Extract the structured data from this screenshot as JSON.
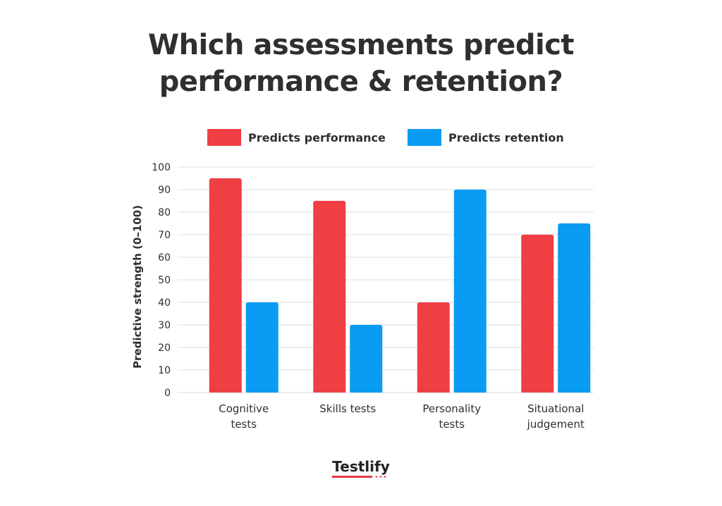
{
  "title": {
    "line1": "Which assessments predict",
    "line2": "performance & retention?"
  },
  "brand": {
    "logo_text": "Testlify"
  },
  "colors": {
    "performance": "#f03e45",
    "retention": "#0a9bf3",
    "grid": "#dedede",
    "text": "#2f2f2f"
  },
  "chart_data": {
    "type": "bar",
    "categories": [
      [
        "Cognitive",
        "tests"
      ],
      [
        "Skills tests"
      ],
      [
        "Personality",
        "tests"
      ],
      [
        "Situational",
        "judgement"
      ]
    ],
    "series": [
      {
        "name": "Predicts performance",
        "values": [
          95,
          85,
          40,
          70
        ]
      },
      {
        "name": "Predicts retention",
        "values": [
          40,
          30,
          90,
          75
        ]
      }
    ],
    "ylabel": "Predictive strength (0–100)",
    "ylim": [
      0,
      100
    ],
    "yticks": [
      0,
      10,
      20,
      30,
      40,
      50,
      60,
      70,
      80,
      90,
      100
    ],
    "grid": true,
    "legend": "top"
  }
}
